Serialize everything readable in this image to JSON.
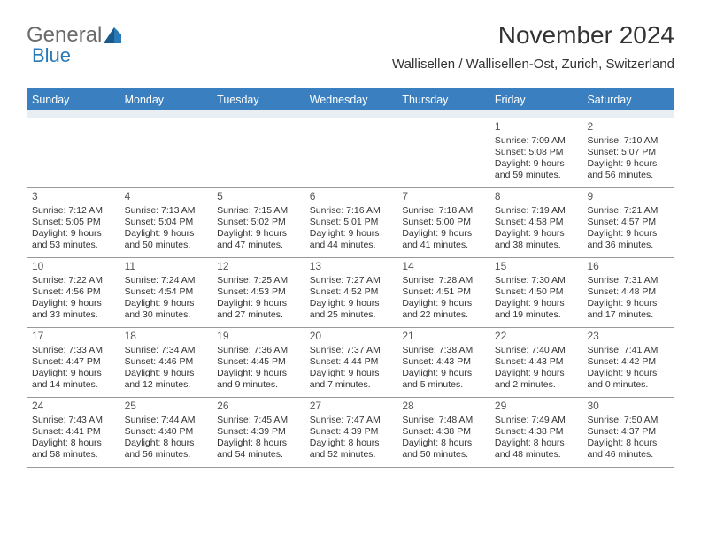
{
  "logo": {
    "text1": "General",
    "text2": "Blue"
  },
  "header": {
    "title": "November 2024",
    "subtitle": "Wallisellen / Wallisellen-Ost, Zurich, Switzerland"
  },
  "colors": {
    "header_bar": "#3a7fbf",
    "spacer": "#e9eef3",
    "row_border": "#999999",
    "text": "#333333",
    "logo_gray": "#6a6a6a",
    "logo_blue": "#2b7ab8"
  },
  "day_names": [
    "Sunday",
    "Monday",
    "Tuesday",
    "Wednesday",
    "Thursday",
    "Friday",
    "Saturday"
  ],
  "weeks": [
    [
      {
        "day": "",
        "sunrise": "",
        "sunset": "",
        "daylight": ""
      },
      {
        "day": "",
        "sunrise": "",
        "sunset": "",
        "daylight": ""
      },
      {
        "day": "",
        "sunrise": "",
        "sunset": "",
        "daylight": ""
      },
      {
        "day": "",
        "sunrise": "",
        "sunset": "",
        "daylight": ""
      },
      {
        "day": "",
        "sunrise": "",
        "sunset": "",
        "daylight": ""
      },
      {
        "day": "1",
        "sunrise": "Sunrise: 7:09 AM",
        "sunset": "Sunset: 5:08 PM",
        "daylight": "Daylight: 9 hours and 59 minutes."
      },
      {
        "day": "2",
        "sunrise": "Sunrise: 7:10 AM",
        "sunset": "Sunset: 5:07 PM",
        "daylight": "Daylight: 9 hours and 56 minutes."
      }
    ],
    [
      {
        "day": "3",
        "sunrise": "Sunrise: 7:12 AM",
        "sunset": "Sunset: 5:05 PM",
        "daylight": "Daylight: 9 hours and 53 minutes."
      },
      {
        "day": "4",
        "sunrise": "Sunrise: 7:13 AM",
        "sunset": "Sunset: 5:04 PM",
        "daylight": "Daylight: 9 hours and 50 minutes."
      },
      {
        "day": "5",
        "sunrise": "Sunrise: 7:15 AM",
        "sunset": "Sunset: 5:02 PM",
        "daylight": "Daylight: 9 hours and 47 minutes."
      },
      {
        "day": "6",
        "sunrise": "Sunrise: 7:16 AM",
        "sunset": "Sunset: 5:01 PM",
        "daylight": "Daylight: 9 hours and 44 minutes."
      },
      {
        "day": "7",
        "sunrise": "Sunrise: 7:18 AM",
        "sunset": "Sunset: 5:00 PM",
        "daylight": "Daylight: 9 hours and 41 minutes."
      },
      {
        "day": "8",
        "sunrise": "Sunrise: 7:19 AM",
        "sunset": "Sunset: 4:58 PM",
        "daylight": "Daylight: 9 hours and 38 minutes."
      },
      {
        "day": "9",
        "sunrise": "Sunrise: 7:21 AM",
        "sunset": "Sunset: 4:57 PM",
        "daylight": "Daylight: 9 hours and 36 minutes."
      }
    ],
    [
      {
        "day": "10",
        "sunrise": "Sunrise: 7:22 AM",
        "sunset": "Sunset: 4:56 PM",
        "daylight": "Daylight: 9 hours and 33 minutes."
      },
      {
        "day": "11",
        "sunrise": "Sunrise: 7:24 AM",
        "sunset": "Sunset: 4:54 PM",
        "daylight": "Daylight: 9 hours and 30 minutes."
      },
      {
        "day": "12",
        "sunrise": "Sunrise: 7:25 AM",
        "sunset": "Sunset: 4:53 PM",
        "daylight": "Daylight: 9 hours and 27 minutes."
      },
      {
        "day": "13",
        "sunrise": "Sunrise: 7:27 AM",
        "sunset": "Sunset: 4:52 PM",
        "daylight": "Daylight: 9 hours and 25 minutes."
      },
      {
        "day": "14",
        "sunrise": "Sunrise: 7:28 AM",
        "sunset": "Sunset: 4:51 PM",
        "daylight": "Daylight: 9 hours and 22 minutes."
      },
      {
        "day": "15",
        "sunrise": "Sunrise: 7:30 AM",
        "sunset": "Sunset: 4:50 PM",
        "daylight": "Daylight: 9 hours and 19 minutes."
      },
      {
        "day": "16",
        "sunrise": "Sunrise: 7:31 AM",
        "sunset": "Sunset: 4:48 PM",
        "daylight": "Daylight: 9 hours and 17 minutes."
      }
    ],
    [
      {
        "day": "17",
        "sunrise": "Sunrise: 7:33 AM",
        "sunset": "Sunset: 4:47 PM",
        "daylight": "Daylight: 9 hours and 14 minutes."
      },
      {
        "day": "18",
        "sunrise": "Sunrise: 7:34 AM",
        "sunset": "Sunset: 4:46 PM",
        "daylight": "Daylight: 9 hours and 12 minutes."
      },
      {
        "day": "19",
        "sunrise": "Sunrise: 7:36 AM",
        "sunset": "Sunset: 4:45 PM",
        "daylight": "Daylight: 9 hours and 9 minutes."
      },
      {
        "day": "20",
        "sunrise": "Sunrise: 7:37 AM",
        "sunset": "Sunset: 4:44 PM",
        "daylight": "Daylight: 9 hours and 7 minutes."
      },
      {
        "day": "21",
        "sunrise": "Sunrise: 7:38 AM",
        "sunset": "Sunset: 4:43 PM",
        "daylight": "Daylight: 9 hours and 5 minutes."
      },
      {
        "day": "22",
        "sunrise": "Sunrise: 7:40 AM",
        "sunset": "Sunset: 4:43 PM",
        "daylight": "Daylight: 9 hours and 2 minutes."
      },
      {
        "day": "23",
        "sunrise": "Sunrise: 7:41 AM",
        "sunset": "Sunset: 4:42 PM",
        "daylight": "Daylight: 9 hours and 0 minutes."
      }
    ],
    [
      {
        "day": "24",
        "sunrise": "Sunrise: 7:43 AM",
        "sunset": "Sunset: 4:41 PM",
        "daylight": "Daylight: 8 hours and 58 minutes."
      },
      {
        "day": "25",
        "sunrise": "Sunrise: 7:44 AM",
        "sunset": "Sunset: 4:40 PM",
        "daylight": "Daylight: 8 hours and 56 minutes."
      },
      {
        "day": "26",
        "sunrise": "Sunrise: 7:45 AM",
        "sunset": "Sunset: 4:39 PM",
        "daylight": "Daylight: 8 hours and 54 minutes."
      },
      {
        "day": "27",
        "sunrise": "Sunrise: 7:47 AM",
        "sunset": "Sunset: 4:39 PM",
        "daylight": "Daylight: 8 hours and 52 minutes."
      },
      {
        "day": "28",
        "sunrise": "Sunrise: 7:48 AM",
        "sunset": "Sunset: 4:38 PM",
        "daylight": "Daylight: 8 hours and 50 minutes."
      },
      {
        "day": "29",
        "sunrise": "Sunrise: 7:49 AM",
        "sunset": "Sunset: 4:38 PM",
        "daylight": "Daylight: 8 hours and 48 minutes."
      },
      {
        "day": "30",
        "sunrise": "Sunrise: 7:50 AM",
        "sunset": "Sunset: 4:37 PM",
        "daylight": "Daylight: 8 hours and 46 minutes."
      }
    ]
  ]
}
